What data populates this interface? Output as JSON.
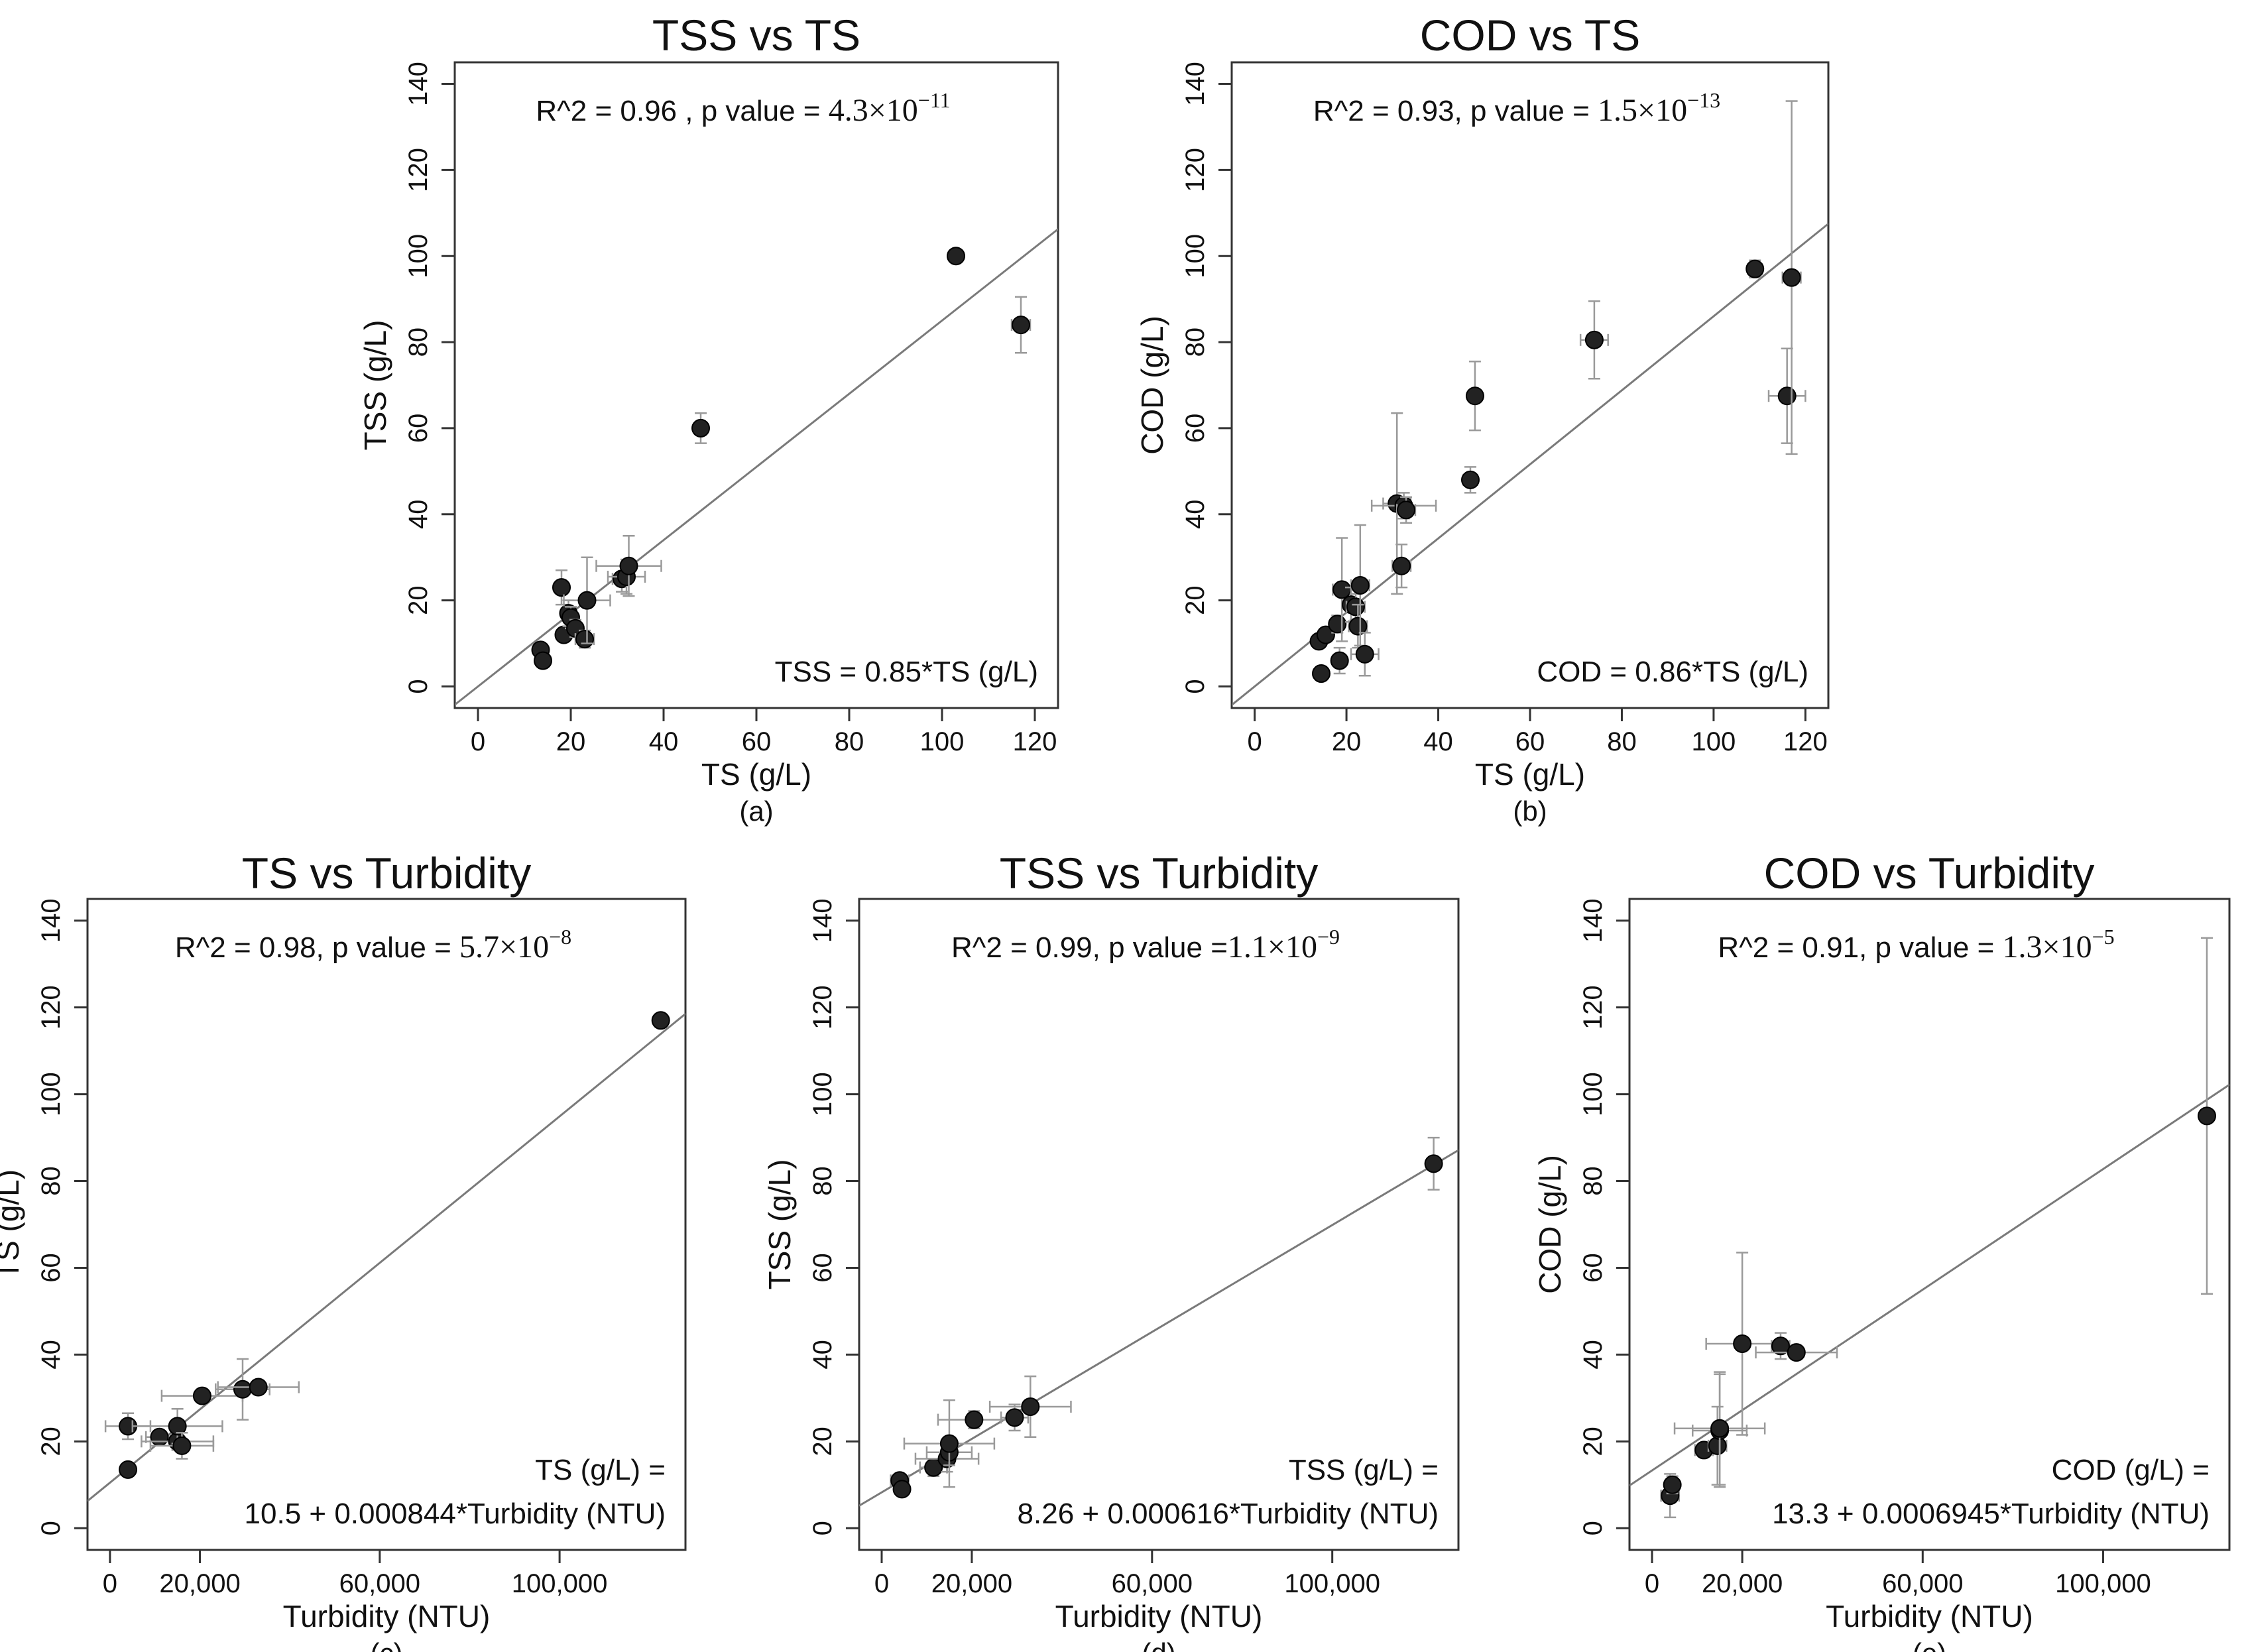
{
  "colors": {
    "axis": "#333333",
    "point": "#222222",
    "fit": "#7a7a7a",
    "error": "#9a9a9a"
  },
  "chart_data": [
    {
      "type": "scatter",
      "panel": "a",
      "title": "TSS vs TS",
      "caption": "(a)",
      "xlabel": "TS (g/L)",
      "ylabel": "TSS (g/L)",
      "xlim": [
        -5,
        125
      ],
      "ylim": [
        -5,
        145
      ],
      "xticks": [
        0,
        20,
        40,
        60,
        80,
        100,
        120
      ],
      "xtick_labels": [
        "0",
        "20",
        "40",
        "60",
        "80",
        "100",
        "120"
      ],
      "yticks": [
        0,
        20,
        40,
        60,
        80,
        100,
        120,
        140
      ],
      "ytick_labels": [
        "0",
        "20",
        "40",
        "60",
        "80",
        "100",
        "120",
        "140"
      ],
      "stats_text": "R^2 = 0.96 , p value = ",
      "pvalue_mantissa": "4.3×10",
      "pvalue_exponent": "−11",
      "equation": [
        "TSS = 0.85*TS (g/L)"
      ],
      "fit": {
        "slope": 0.85,
        "intercept": 0
      },
      "points": [
        {
          "x": 13.5,
          "y": 8.5,
          "ex": 0.5,
          "ey": 1
        },
        {
          "x": 14,
          "y": 6,
          "ex": 0.5,
          "ey": 1
        },
        {
          "x": 18,
          "y": 23,
          "ex": 0.8,
          "ey": 4
        },
        {
          "x": 18.5,
          "y": 12,
          "ex": 0.6,
          "ey": 1.5
        },
        {
          "x": 19.5,
          "y": 17,
          "ex": 1.5,
          "ey": 3
        },
        {
          "x": 20,
          "y": 16,
          "ex": 1,
          "ey": 2.5
        },
        {
          "x": 21,
          "y": 13.5,
          "ex": 1,
          "ey": 2
        },
        {
          "x": 23,
          "y": 11,
          "ex": 2,
          "ey": 2
        },
        {
          "x": 23.5,
          "y": 20,
          "ex": 5,
          "ey": 10
        },
        {
          "x": 31,
          "y": 25,
          "ex": 2,
          "ey": 3
        },
        {
          "x": 32,
          "y": 25.5,
          "ex": 4,
          "ey": 4
        },
        {
          "x": 32.5,
          "y": 28,
          "ex": 7,
          "ey": 7
        },
        {
          "x": 48,
          "y": 60,
          "ex": 1,
          "ey": 3.5
        },
        {
          "x": 103,
          "y": 100,
          "ex": 1,
          "ey": 1
        },
        {
          "x": 117,
          "y": 84,
          "ex": 2,
          "ey": 6.5
        }
      ]
    },
    {
      "type": "scatter",
      "panel": "b",
      "title": "COD vs TS",
      "caption": "(b)",
      "xlabel": "TS (g/L)",
      "ylabel": "COD (g/L)",
      "xlim": [
        -5,
        125
      ],
      "ylim": [
        -5,
        145
      ],
      "xticks": [
        0,
        20,
        40,
        60,
        80,
        100,
        120
      ],
      "xtick_labels": [
        "0",
        "20",
        "40",
        "60",
        "80",
        "100",
        "120"
      ],
      "yticks": [
        0,
        20,
        40,
        60,
        80,
        100,
        120,
        140
      ],
      "ytick_labels": [
        "0",
        "20",
        "40",
        "60",
        "80",
        "100",
        "120",
        "140"
      ],
      "stats_text": "R^2 = 0.93, p value = ",
      "pvalue_mantissa": "1.5×10",
      "pvalue_exponent": "−13",
      "equation": [
        "COD = 0.86*TS (g/L)"
      ],
      "fit": {
        "slope": 0.86,
        "intercept": 0
      },
      "points": [
        {
          "x": 14,
          "y": 10.5,
          "ex": 1,
          "ey": 1
        },
        {
          "x": 14.5,
          "y": 3,
          "ex": 0.5,
          "ey": 1
        },
        {
          "x": 15.5,
          "y": 12,
          "ex": 1,
          "ey": 1.5
        },
        {
          "x": 18,
          "y": 14.5,
          "ex": 1,
          "ey": 2
        },
        {
          "x": 18.5,
          "y": 6,
          "ex": 1,
          "ey": 3
        },
        {
          "x": 19,
          "y": 22.5,
          "ex": 2,
          "ey": 12
        },
        {
          "x": 21,
          "y": 19,
          "ex": 2,
          "ey": 4
        },
        {
          "x": 22,
          "y": 18.5,
          "ex": 2,
          "ey": 3
        },
        {
          "x": 22.5,
          "y": 14,
          "ex": 2,
          "ey": 5
        },
        {
          "x": 23,
          "y": 23.5,
          "ex": 2,
          "ey": 14
        },
        {
          "x": 24,
          "y": 7.5,
          "ex": 3,
          "ey": 5
        },
        {
          "x": 31,
          "y": 42.5,
          "ex": 3,
          "ey": 21
        },
        {
          "x": 32,
          "y": 28,
          "ex": 2,
          "ey": 5
        },
        {
          "x": 32.5,
          "y": 42,
          "ex": 7,
          "ey": 3
        },
        {
          "x": 33,
          "y": 41,
          "ex": 2,
          "ey": 3
        },
        {
          "x": 47,
          "y": 48,
          "ex": 1.5,
          "ey": 3
        },
        {
          "x": 48,
          "y": 67.5,
          "ex": 1,
          "ey": 8
        },
        {
          "x": 74,
          "y": 80.5,
          "ex": 3,
          "ey": 9
        },
        {
          "x": 109,
          "y": 97,
          "ex": 1.5,
          "ey": 2
        },
        {
          "x": 116,
          "y": 67.5,
          "ex": 4,
          "ey": 11
        },
        {
          "x": 117,
          "y": 95,
          "ex": 2,
          "ey": 41
        }
      ]
    },
    {
      "type": "scatter",
      "panel": "c",
      "title": "TS vs Turbidity",
      "caption": "(c)",
      "xlabel": "Turbidity (NTU)",
      "ylabel": "TS (g/L)",
      "xlim": [
        -5000,
        128000
      ],
      "ylim": [
        -5,
        145
      ],
      "xticks": [
        0,
        20000,
        60000,
        100000
      ],
      "xtick_labels": [
        "0",
        "20,000",
        "60,000",
        "100,000"
      ],
      "yticks": [
        0,
        20,
        40,
        60,
        80,
        100,
        120,
        140
      ],
      "ytick_labels": [
        "0",
        "20",
        "40",
        "60",
        "80",
        "100",
        "120",
        "140"
      ],
      "stats_text": "R^2 = 0.98, p value = ",
      "pvalue_mantissa": "5.7×10",
      "pvalue_exponent": "−8",
      "equation": [
        "TS (g/L) =",
        "10.5 + 0.000844*Turbidity (NTU)"
      ],
      "fit": {
        "slope": 0.000844,
        "intercept": 10.5
      },
      "points": [
        {
          "x": 4000,
          "y": 13.5,
          "ex": 500,
          "ey": 1
        },
        {
          "x": 4000,
          "y": 23.5,
          "ex": 5000,
          "ey": 3
        },
        {
          "x": 11000,
          "y": 21,
          "ex": 3000,
          "ey": 1.5
        },
        {
          "x": 15000,
          "y": 20,
          "ex": 8000,
          "ey": 2
        },
        {
          "x": 15000,
          "y": 23.5,
          "ex": 10000,
          "ey": 4
        },
        {
          "x": 16000,
          "y": 19,
          "ex": 7000,
          "ey": 3
        },
        {
          "x": 20500,
          "y": 30.5,
          "ex": 9000,
          "ey": 1.5
        },
        {
          "x": 29500,
          "y": 32,
          "ex": 6000,
          "ey": 7
        },
        {
          "x": 33000,
          "y": 32.5,
          "ex": 9000,
          "ey": 1.5
        },
        {
          "x": 122500,
          "y": 117,
          "ex": 1000,
          "ey": 1.5
        }
      ]
    },
    {
      "type": "scatter",
      "panel": "d",
      "title": "TSS vs Turbidity",
      "caption": "(d)",
      "xlabel": "Turbidity (NTU)",
      "ylabel": "TSS (g/L)",
      "xlim": [
        -5000,
        128000
      ],
      "ylim": [
        -5,
        145
      ],
      "xticks": [
        0,
        20000,
        60000,
        100000
      ],
      "xtick_labels": [
        "0",
        "20,000",
        "60,000",
        "100,000"
      ],
      "yticks": [
        0,
        20,
        40,
        60,
        80,
        100,
        120,
        140
      ],
      "ytick_labels": [
        "0",
        "20",
        "40",
        "60",
        "80",
        "100",
        "120",
        "140"
      ],
      "stats_text": "R^2 = 0.99, p value =",
      "pvalue_mantissa": "1.1×10",
      "pvalue_exponent": "−9",
      "equation": [
        "TSS (g/L) =",
        "8.26 + 0.000616*Turbidity (NTU)"
      ],
      "fit": {
        "slope": 0.000616,
        "intercept": 8.26
      },
      "points": [
        {
          "x": 4000,
          "y": 11,
          "ex": 2000,
          "ey": 1
        },
        {
          "x": 4500,
          "y": 9,
          "ex": 1000,
          "ey": 1
        },
        {
          "x": 11500,
          "y": 14,
          "ex": 3000,
          "ey": 2
        },
        {
          "x": 14500,
          "y": 16,
          "ex": 7000,
          "ey": 3
        },
        {
          "x": 15000,
          "y": 17.5,
          "ex": 5000,
          "ey": 3
        },
        {
          "x": 15000,
          "y": 19.5,
          "ex": 10000,
          "ey": 10
        },
        {
          "x": 20500,
          "y": 25,
          "ex": 8000,
          "ey": 2
        },
        {
          "x": 29500,
          "y": 25.5,
          "ex": 3000,
          "ey": 3
        },
        {
          "x": 33000,
          "y": 28,
          "ex": 9000,
          "ey": 7
        },
        {
          "x": 122500,
          "y": 84,
          "ex": 1000,
          "ey": 6
        }
      ]
    },
    {
      "type": "scatter",
      "panel": "e",
      "title": "COD vs Turbidity",
      "caption": "(e)",
      "xlabel": "Turbidity (NTU)",
      "ylabel": "COD (g/L)",
      "xlim": [
        -5000,
        128000
      ],
      "ylim": [
        -5,
        145
      ],
      "xticks": [
        0,
        20000,
        60000,
        100000
      ],
      "xtick_labels": [
        "0",
        "20,000",
        "60,000",
        "100,000"
      ],
      "yticks": [
        0,
        20,
        40,
        60,
        80,
        100,
        120,
        140
      ],
      "ytick_labels": [
        "0",
        "20",
        "40",
        "60",
        "80",
        "100",
        "120",
        "140"
      ],
      "stats_text": "R^2 = 0.91, p value = ",
      "pvalue_mantissa": "1.3×10",
      "pvalue_exponent": "−5",
      "equation": [
        "COD (g/L) =",
        "13.3 + 0.0006945*Turbidity (NTU)"
      ],
      "fit": {
        "slope": 0.0006945,
        "intercept": 13.3
      },
      "points": [
        {
          "x": 4000,
          "y": 7.5,
          "ex": 2000,
          "ey": 5
        },
        {
          "x": 4500,
          "y": 10,
          "ex": 1000,
          "ey": 2
        },
        {
          "x": 11500,
          "y": 18,
          "ex": 2000,
          "ey": 1.5
        },
        {
          "x": 14500,
          "y": 19,
          "ex": 2000,
          "ey": 9
        },
        {
          "x": 15000,
          "y": 22.5,
          "ex": 6000,
          "ey": 13
        },
        {
          "x": 15000,
          "y": 23,
          "ex": 10000,
          "ey": 13
        },
        {
          "x": 20000,
          "y": 42.5,
          "ex": 8000,
          "ey": 21
        },
        {
          "x": 28500,
          "y": 42,
          "ex": 2000,
          "ey": 3
        },
        {
          "x": 32000,
          "y": 40.5,
          "ex": 9000,
          "ey": 1.5
        },
        {
          "x": 123000,
          "y": 95,
          "ex": 1000,
          "ey": 41
        }
      ]
    }
  ]
}
